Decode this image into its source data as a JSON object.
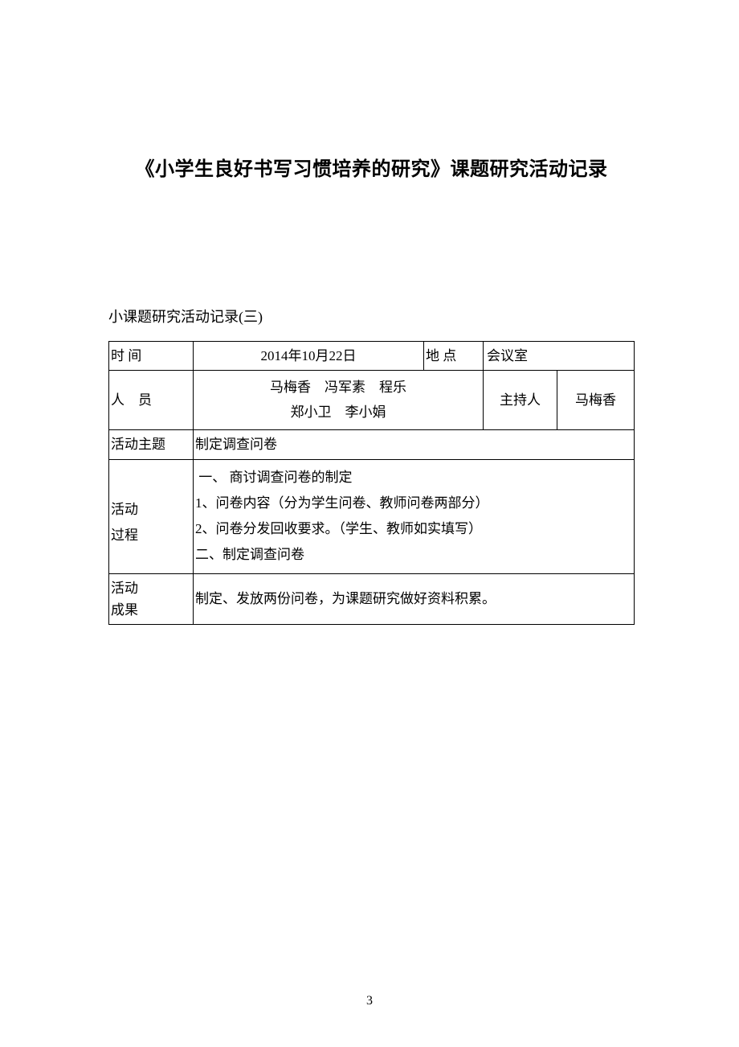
{
  "title": "《小学生良好书写习惯培养的研究》课题研究活动记录",
  "subtitle": "小课题研究活动记录(三)",
  "labels": {
    "time": "时 间",
    "location": "地 点",
    "personnel": "人　员",
    "host": "主持人",
    "topic": "活动主题",
    "process_line1": "活动",
    "process_line2": "过程",
    "result_line1": "活动",
    "result_line2": "成果"
  },
  "values": {
    "time": "2014年10月22日",
    "location": "会议室",
    "personnel_line1": "马梅香　冯军素　程乐",
    "personnel_line2": "郑小卫　李小娟",
    "host": "马梅香",
    "topic": "制定调查问卷",
    "process_line1": "一、 商讨调查问卷的制定",
    "process_line2": "1、问卷内容（分为学生问卷、教师问卷两部分）",
    "process_line3": "2、问卷分发回收要求。（学生、教师如实填写）",
    "process_line4": "二、制定调查问卷",
    "result": "制定、发放两份问卷，为课题研究做好资料积累。"
  },
  "page_number": "3"
}
